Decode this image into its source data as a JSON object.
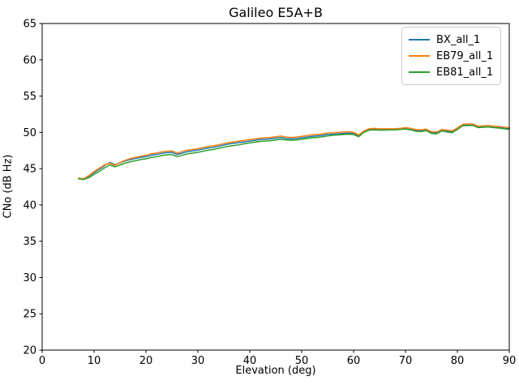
{
  "chart_data": {
    "type": "line",
    "title": "Galileo E5A+B",
    "xlabel": "Elevation (deg)",
    "ylabel": "CNo (dB Hz)",
    "xlim": [
      0,
      90
    ],
    "ylim": [
      20,
      65
    ],
    "xticks": [
      0,
      10,
      20,
      30,
      40,
      50,
      60,
      70,
      80,
      90
    ],
    "yticks": [
      20,
      25,
      30,
      35,
      40,
      45,
      50,
      55,
      60,
      65
    ],
    "grid": false,
    "legend_position": "upper-right",
    "x": [
      7,
      8,
      9,
      10,
      11,
      12,
      13,
      14,
      15,
      16,
      17,
      18,
      19,
      20,
      21,
      22,
      23,
      24,
      25,
      26,
      27,
      28,
      29,
      30,
      31,
      32,
      33,
      34,
      35,
      36,
      37,
      38,
      39,
      40,
      41,
      42,
      43,
      44,
      45,
      46,
      47,
      48,
      49,
      50,
      51,
      52,
      53,
      54,
      55,
      56,
      57,
      58,
      59,
      60,
      61,
      62,
      63,
      64,
      65,
      66,
      67,
      68,
      69,
      70,
      71,
      72,
      73,
      74,
      75,
      76,
      77,
      78,
      79,
      80,
      81,
      82,
      83,
      84,
      85,
      86,
      87,
      88,
      89,
      90
    ],
    "series": [
      {
        "name": "BX_all_1",
        "color": "#1f77b4",
        "values": [
          43.65,
          43.55,
          43.95,
          44.45,
          44.9,
          45.4,
          45.85,
          45.55,
          45.8,
          46.05,
          46.25,
          46.4,
          46.55,
          46.65,
          46.85,
          46.95,
          47.1,
          47.2,
          47.25,
          46.95,
          47.15,
          47.35,
          47.45,
          47.55,
          47.7,
          47.85,
          47.95,
          48.1,
          48.25,
          48.4,
          48.5,
          48.6,
          48.7,
          48.8,
          48.9,
          49.0,
          49.05,
          49.1,
          49.2,
          49.3,
          49.15,
          49.1,
          49.15,
          49.25,
          49.35,
          49.45,
          49.5,
          49.6,
          49.7,
          49.75,
          49.8,
          49.85,
          49.9,
          49.85,
          49.5,
          50.1,
          50.4,
          50.45,
          50.4,
          50.4,
          50.45,
          50.45,
          50.5,
          50.55,
          50.45,
          50.25,
          50.2,
          50.35,
          49.95,
          49.9,
          50.3,
          50.15,
          50.05,
          50.5,
          51.0,
          51.05,
          51.05,
          50.75,
          50.8,
          50.85,
          50.75,
          50.7,
          50.6,
          50.55
        ]
      },
      {
        "name": "EB79_all_1",
        "color": "#ff7f0e",
        "values": [
          43.7,
          43.6,
          44.05,
          44.6,
          45.05,
          45.5,
          45.75,
          45.45,
          45.85,
          46.15,
          46.4,
          46.55,
          46.7,
          46.85,
          47.05,
          47.15,
          47.3,
          47.4,
          47.45,
          47.15,
          47.35,
          47.55,
          47.65,
          47.75,
          47.9,
          48.05,
          48.15,
          48.3,
          48.45,
          48.6,
          48.7,
          48.8,
          48.9,
          49.0,
          49.1,
          49.2,
          49.25,
          49.3,
          49.4,
          49.5,
          49.35,
          49.3,
          49.35,
          49.45,
          49.55,
          49.65,
          49.7,
          49.8,
          49.9,
          49.95,
          50.0,
          50.05,
          50.1,
          50.0,
          49.65,
          50.2,
          50.5,
          50.55,
          50.5,
          50.5,
          50.5,
          50.5,
          50.55,
          50.65,
          50.55,
          50.4,
          50.35,
          50.45,
          50.1,
          50.05,
          50.4,
          50.3,
          50.2,
          50.6,
          51.1,
          51.15,
          51.15,
          50.85,
          50.9,
          50.95,
          50.85,
          50.8,
          50.7,
          50.65
        ]
      },
      {
        "name": "EB81_all_1",
        "color": "#2ca02c",
        "values": [
          43.6,
          43.5,
          43.75,
          44.2,
          44.6,
          45.1,
          45.5,
          45.25,
          45.5,
          45.75,
          45.95,
          46.1,
          46.25,
          46.35,
          46.55,
          46.65,
          46.8,
          46.9,
          46.95,
          46.65,
          46.85,
          47.05,
          47.15,
          47.25,
          47.4,
          47.55,
          47.65,
          47.8,
          47.95,
          48.1,
          48.2,
          48.3,
          48.45,
          48.55,
          48.65,
          48.75,
          48.8,
          48.85,
          48.95,
          49.05,
          48.95,
          48.9,
          48.95,
          49.05,
          49.15,
          49.25,
          49.3,
          49.4,
          49.5,
          49.6,
          49.65,
          49.7,
          49.75,
          49.7,
          49.4,
          50.0,
          50.3,
          50.35,
          50.3,
          50.3,
          50.35,
          50.35,
          50.4,
          50.45,
          50.35,
          50.15,
          50.1,
          50.25,
          49.85,
          49.8,
          50.2,
          50.05,
          49.95,
          50.4,
          50.9,
          50.95,
          50.95,
          50.65,
          50.7,
          50.75,
          50.65,
          50.6,
          50.5,
          50.4
        ]
      }
    ]
  }
}
